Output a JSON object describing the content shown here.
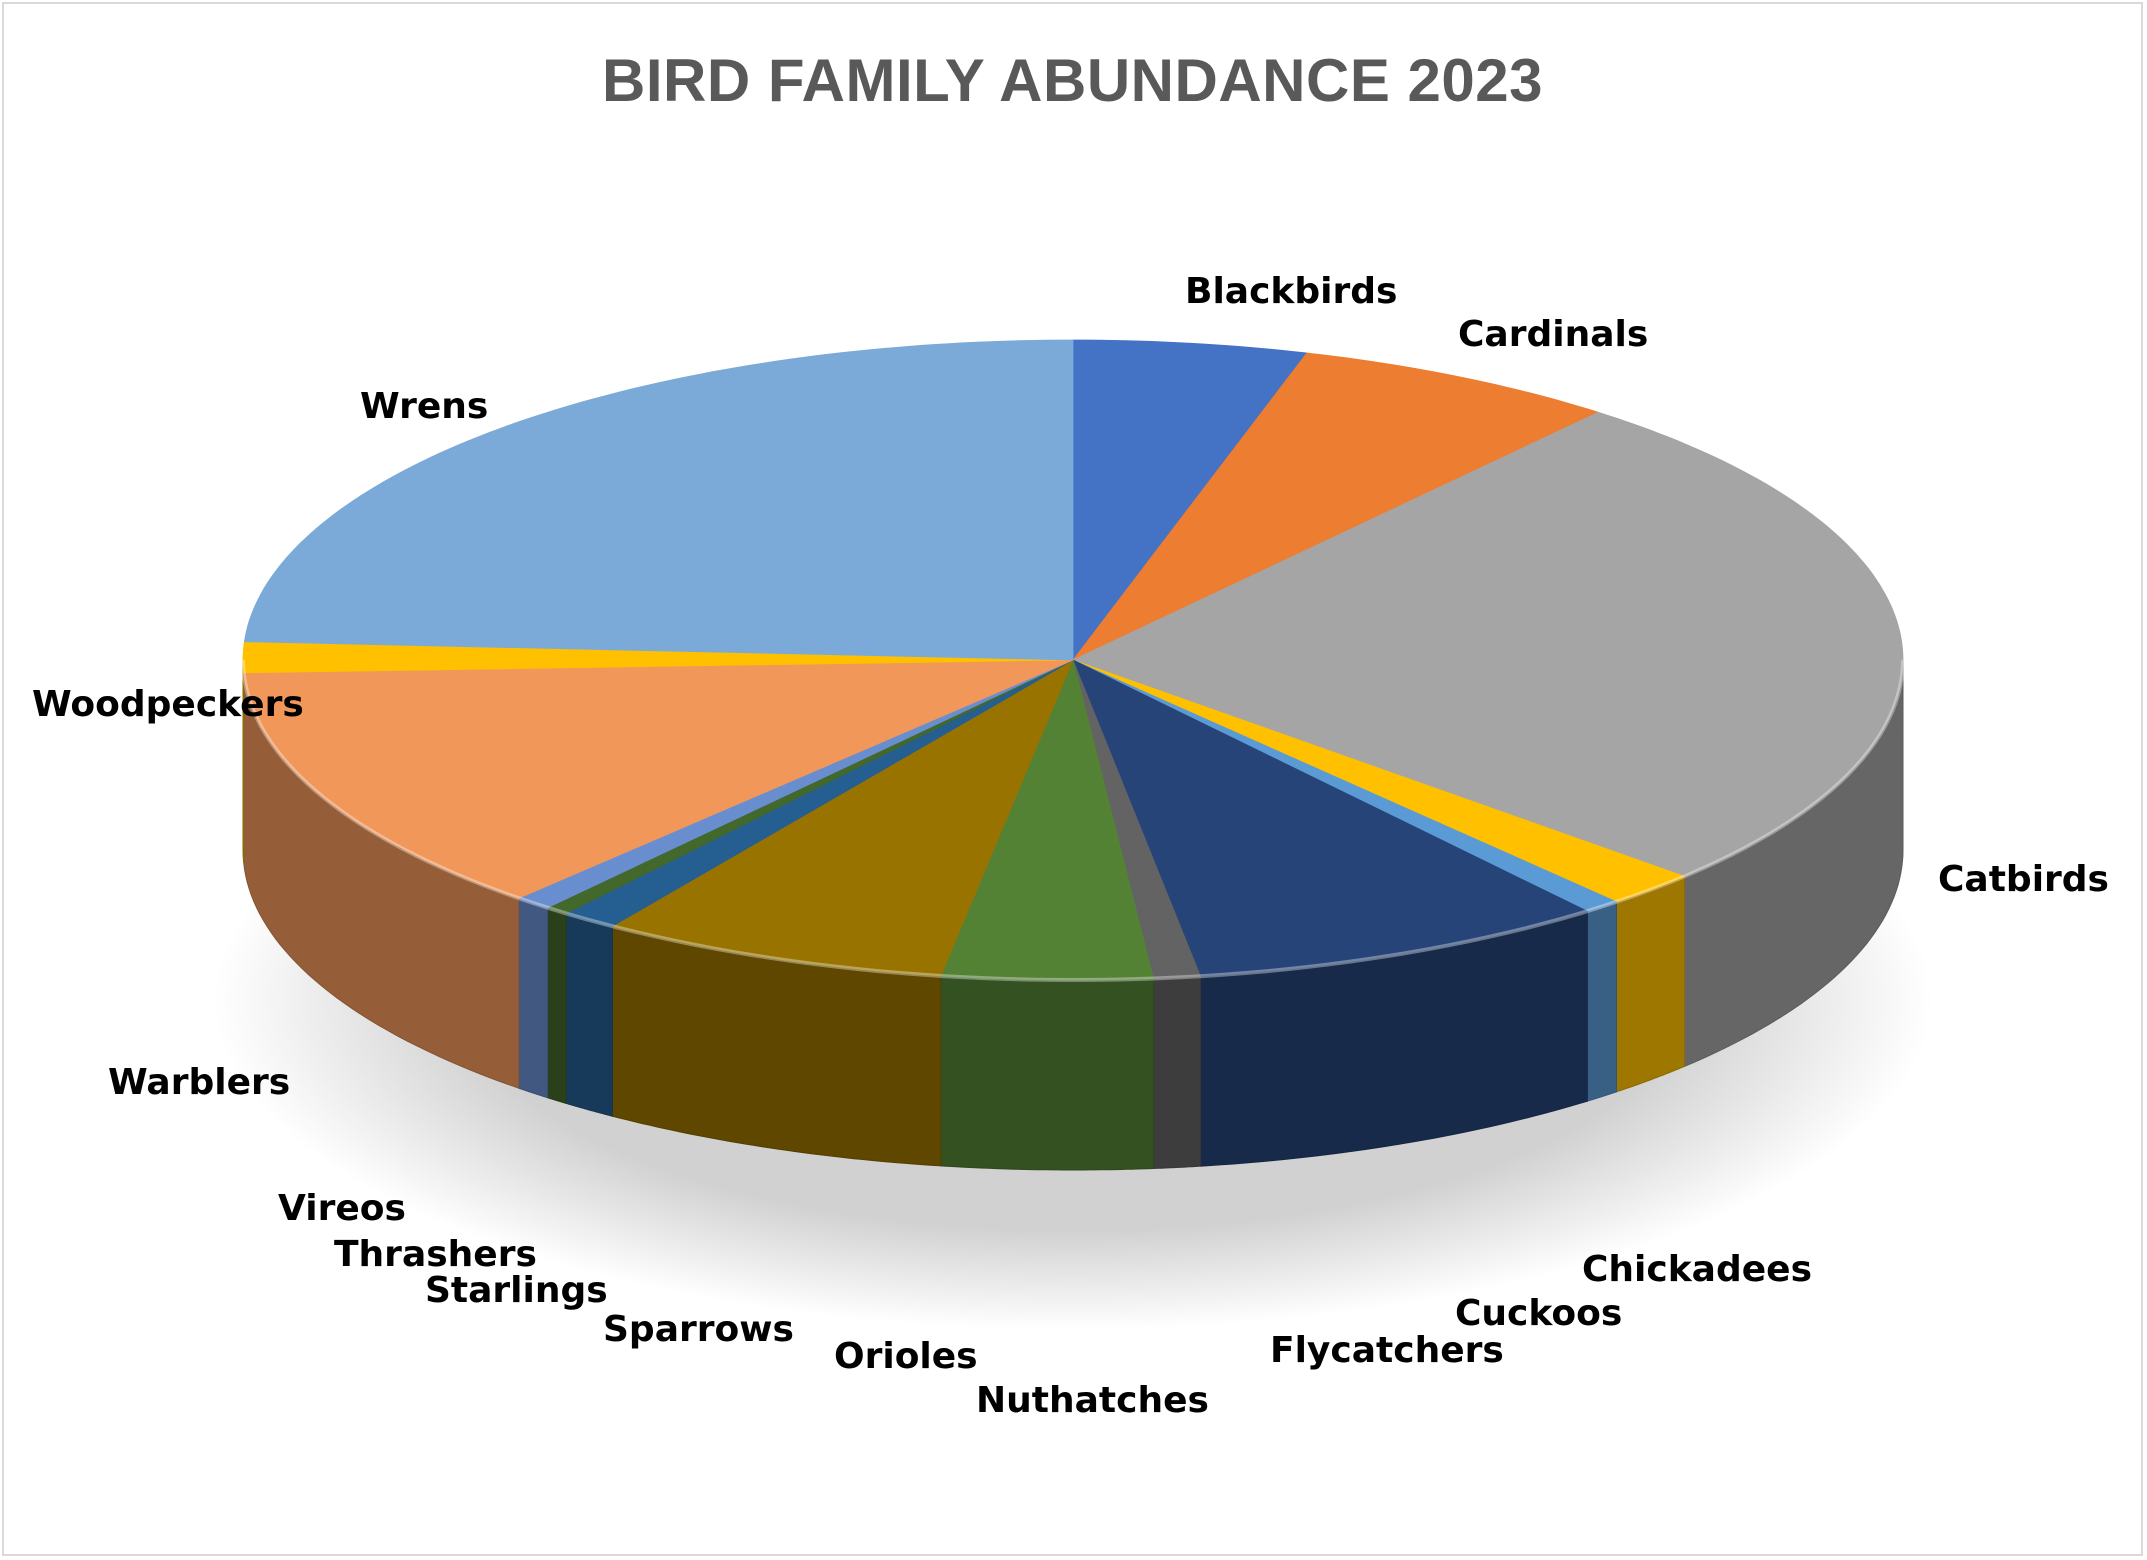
{
  "chart_data": {
    "type": "pie",
    "title": "BIRD FAMILY ABUNDANCE 2023",
    "slices": [
      {
        "label": "Blackbirds",
        "value": 5.0,
        "color": "#4472C4"
      },
      {
        "label": "Cardinals",
        "value": 7.0,
        "color": "#ED7D31"
      },
      {
        "label": "Catbirds",
        "value": 28.5,
        "color": "#A5A5A5"
      },
      {
        "label": "Chickadees",
        "value": 2.0,
        "color": "#FFC000"
      },
      {
        "label": "Cuckoos",
        "value": 0.8,
        "color": "#5B9BD5"
      },
      {
        "label": "Flycatchers",
        "value": 9.0,
        "color": "#264478"
      },
      {
        "label": "Nuthatches",
        "value": 1.0,
        "color": "#636363"
      },
      {
        "label": "Orioles",
        "value": 4.5,
        "color": "#548235"
      },
      {
        "label": "Sparrows",
        "value": 7.5,
        "color": "#997300"
      },
      {
        "label": "Starlings",
        "value": 1.2,
        "color": "#255E91"
      },
      {
        "label": "Thrashers",
        "value": 0.5,
        "color": "#43682B"
      },
      {
        "label": "Vireos",
        "value": 0.8,
        "color": "#698ED0"
      },
      {
        "label": "Warblers",
        "value": 14.0,
        "color": "#F1975A"
      },
      {
        "label": "Woodpeckers",
        "value": 1.7,
        "color": "#FFC000"
      },
      {
        "label": "Wrens",
        "value": 26.5,
        "color": "#7BAAD9"
      }
    ]
  }
}
